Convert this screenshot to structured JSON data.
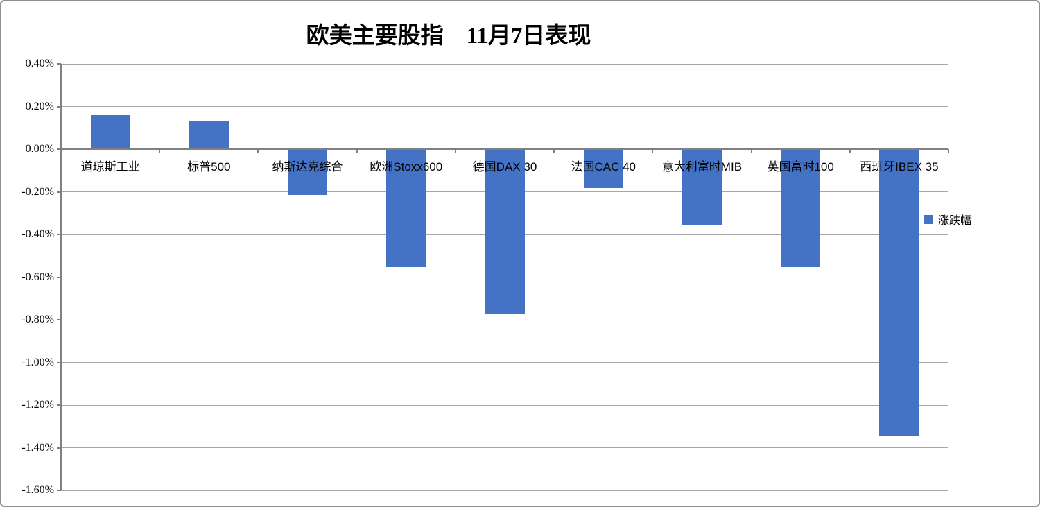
{
  "title": "欧美主要股指　11月7日表现",
  "legend": {
    "label": "涨跌幅"
  },
  "colors": {
    "bar": "#4472C4",
    "gridline": "#A6A6A6",
    "axis": "#808080",
    "text": "#000000",
    "border": "#8F8F8F"
  },
  "chart_data": {
    "type": "bar",
    "title": "欧美主要股指　11月7日表现",
    "categories": [
      "道琼斯工业",
      "标普500",
      "纳斯达克综合",
      "欧洲Stoxx600",
      "德国DAX 30",
      "法国CAC 40",
      "意大利富时MIB",
      "英国富时100",
      "西班牙IBEX 35"
    ],
    "series": [
      {
        "name": "涨跌幅",
        "values": [
          0.16,
          0.13,
          -0.21,
          -0.55,
          -0.77,
          -0.18,
          -0.35,
          -0.55,
          -1.34
        ]
      }
    ],
    "value_unit": "%",
    "ylim": [
      -1.6,
      0.4
    ],
    "ytick_step": 0.2,
    "ytick_labels": [
      "0.40%",
      "0.20%",
      "0.00%",
      "-0.20%",
      "-0.40%",
      "-0.60%",
      "-0.80%",
      "-1.00%",
      "-1.20%",
      "-1.40%",
      "-1.60%"
    ],
    "grid": true,
    "legend_position": "right",
    "bar_color": "#4472C4"
  }
}
